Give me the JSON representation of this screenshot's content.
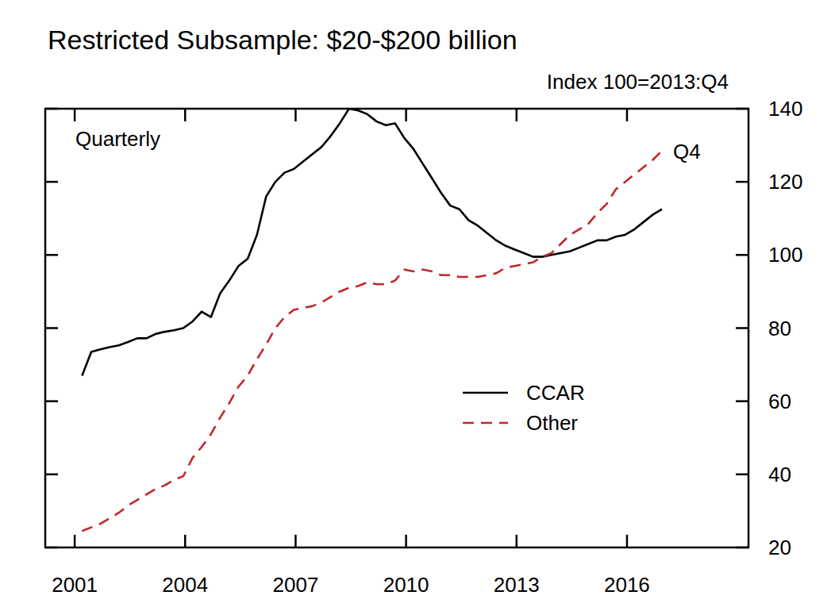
{
  "chart_data": {
    "type": "line",
    "title": "Restricted Subsample: $20-$200 billion",
    "y_label": "Index 100=2013:Q4",
    "annotations": [
      {
        "text": "Quarterly"
      },
      {
        "text": "Q4"
      }
    ],
    "x": [
      2001.2,
      2001.45,
      2001.7,
      2001.95,
      2002.2,
      2002.45,
      2002.7,
      2002.95,
      2003.2,
      2003.45,
      2003.7,
      2003.95,
      2004.2,
      2004.45,
      2004.7,
      2004.95,
      2005.2,
      2005.45,
      2005.7,
      2005.95,
      2006.2,
      2006.45,
      2006.7,
      2006.95,
      2007.2,
      2007.45,
      2007.7,
      2007.95,
      2008.2,
      2008.45,
      2008.7,
      2008.95,
      2009.2,
      2009.45,
      2009.7,
      2009.95,
      2010.2,
      2010.45,
      2010.7,
      2010.95,
      2011.2,
      2011.45,
      2011.7,
      2011.95,
      2012.2,
      2012.45,
      2012.7,
      2012.95,
      2013.2,
      2013.45,
      2013.7,
      2013.95,
      2014.2,
      2014.45,
      2014.7,
      2014.95,
      2015.2,
      2015.45,
      2015.7,
      2015.95,
      2016.2,
      2016.45,
      2016.7,
      2016.95
    ],
    "series": [
      {
        "name": "CCAR",
        "color": "#000000",
        "line_style": "solid",
        "values": [
          67,
          73.5,
          74.2,
          74.8,
          75.3,
          76.2,
          77.2,
          77.2,
          78.4,
          79,
          79.4,
          80,
          81.8,
          84.5,
          83,
          89.5,
          93,
          97,
          99,
          105.5,
          116,
          120,
          122.5,
          123.5,
          125.5,
          127.5,
          129.5,
          132.5,
          136,
          140,
          139.5,
          138.5,
          136.5,
          135.5,
          136,
          132,
          129,
          125,
          121,
          117,
          113.5,
          112.5,
          109.5,
          108,
          106,
          104,
          102.5,
          101.5,
          100.5,
          99.5,
          99.5,
          100,
          100.5,
          101,
          102,
          103,
          104,
          104,
          105,
          105.5,
          107,
          109,
          111,
          112.5
        ]
      },
      {
        "name": "Other",
        "color": "#c1272d",
        "line_style": "dashed",
        "values": [
          24.5,
          25.5,
          26.5,
          28,
          29.5,
          31.5,
          33,
          34.5,
          36,
          37,
          38.5,
          39.5,
          44.5,
          47.5,
          51,
          55.5,
          59.5,
          64,
          67,
          71.5,
          75.5,
          80,
          83,
          85,
          85.5,
          86,
          87,
          88.5,
          90,
          91,
          91.5,
          92.5,
          92,
          92,
          93,
          96,
          95.5,
          96,
          95.5,
          94.5,
          94.5,
          94,
          94,
          94,
          94.5,
          95,
          96.5,
          97,
          97.5,
          98,
          99.5,
          100.5,
          103,
          105.5,
          107,
          108.5,
          111.5,
          114,
          118,
          120,
          122,
          124,
          126,
          128.5
        ]
      }
    ],
    "xlim": [
      2000.2,
      2019.3
    ],
    "xticks": [
      2001,
      2004,
      2007,
      2010,
      2013,
      2016
    ],
    "ylim": [
      20,
      140
    ],
    "yticks": [
      20,
      40,
      60,
      80,
      100,
      120,
      140
    ],
    "legend": "bottom-right",
    "grid": false
  }
}
